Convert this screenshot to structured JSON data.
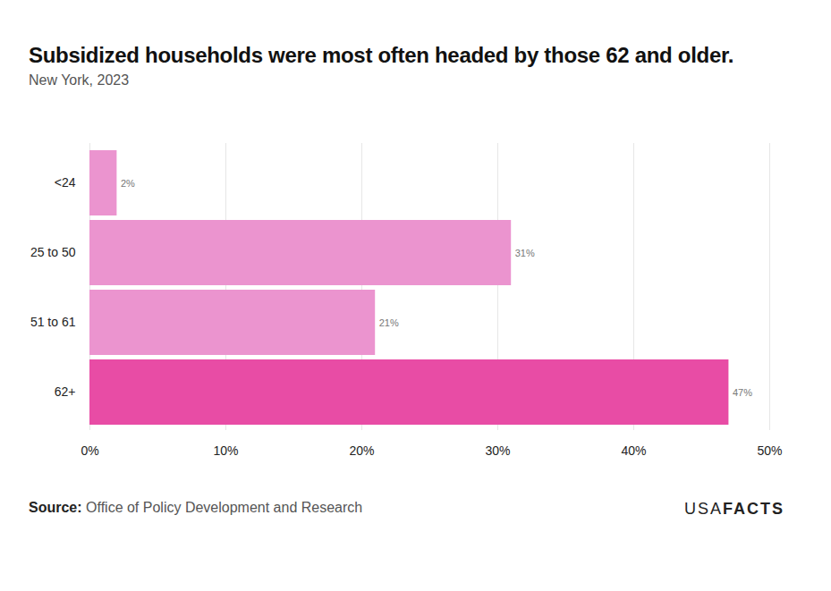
{
  "chart_data": {
    "type": "bar",
    "orientation": "horizontal",
    "title": "Subsidized households were most often headed by those 62 and older.",
    "subtitle": "New York, 2023",
    "categories": [
      "<24",
      "25 to 50",
      "51 to 61",
      "62+"
    ],
    "values": [
      2,
      31,
      21,
      47
    ],
    "value_labels": [
      "2%",
      "31%",
      "21%",
      "47%"
    ],
    "colors": [
      "#eb94cf",
      "#eb94cf",
      "#eb94cf",
      "#e84ca5"
    ],
    "xlim": [
      0,
      50
    ],
    "xticks": [
      {
        "value": 0,
        "label": "0%"
      },
      {
        "value": 10,
        "label": "10%"
      },
      {
        "value": 20,
        "label": "20%"
      },
      {
        "value": 30,
        "label": "30%"
      },
      {
        "value": 40,
        "label": "40%"
      },
      {
        "value": 50,
        "label": "50%"
      }
    ],
    "grid": true,
    "data_labels": true,
    "source_label": "Source:",
    "source": "Office of Policy Development and Research",
    "logo": [
      "USA",
      "FACTS"
    ]
  }
}
